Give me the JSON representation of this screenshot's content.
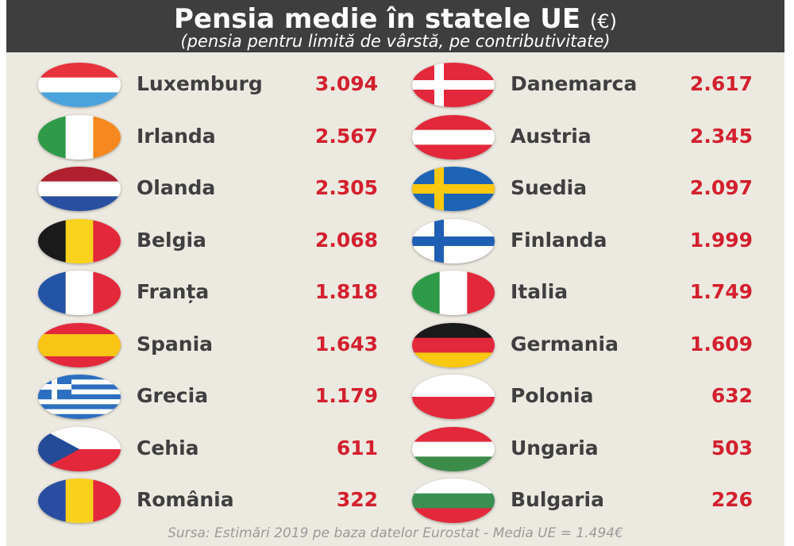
{
  "title": "Pensia medie în statele UE",
  "title_unit": "(€)",
  "subtitle": "(pensia pentru limită de vârstă, pe contributivitate)",
  "source": "Sursa: Estimări 2019 pe baza datelor Eurostat - Media UE = 1.494€",
  "colors": {
    "header": "#3e3e3e",
    "background": "#ece9e0",
    "value": "#d3202e",
    "name": "#3f3f3f"
  },
  "left_column": [
    {
      "country": "Luxemburg",
      "value": "3.094",
      "flag": "luxembourg-flag-icon"
    },
    {
      "country": "Irlanda",
      "value": "2.567",
      "flag": "ireland-flag-icon"
    },
    {
      "country": "Olanda",
      "value": "2.305",
      "flag": "netherlands-flag-icon"
    },
    {
      "country": "Belgia",
      "value": "2.068",
      "flag": "belgium-flag-icon"
    },
    {
      "country": "Franța",
      "value": "1.818",
      "flag": "france-flag-icon"
    },
    {
      "country": "Spania",
      "value": "1.643",
      "flag": "spain-flag-icon"
    },
    {
      "country": "Grecia",
      "value": "1.179",
      "flag": "greece-flag-icon"
    },
    {
      "country": "Cehia",
      "value": "611",
      "flag": "czechia-flag-icon"
    },
    {
      "country": "România",
      "value": "322",
      "flag": "romania-flag-icon"
    }
  ],
  "right_column": [
    {
      "country": "Danemarca",
      "value": "2.617",
      "flag": "denmark-flag-icon"
    },
    {
      "country": "Austria",
      "value": "2.345",
      "flag": "austria-flag-icon"
    },
    {
      "country": "Suedia",
      "value": "2.097",
      "flag": "sweden-flag-icon"
    },
    {
      "country": "Finlanda",
      "value": "1.999",
      "flag": "finland-flag-icon"
    },
    {
      "country": "Italia",
      "value": "1.749",
      "flag": "italy-flag-icon"
    },
    {
      "country": "Germania",
      "value": "1.609",
      "flag": "germany-flag-icon"
    },
    {
      "country": "Polonia",
      "value": "632",
      "flag": "poland-flag-icon"
    },
    {
      "country": "Ungaria",
      "value": "503",
      "flag": "hungary-flag-icon"
    },
    {
      "country": "Bulgaria",
      "value": "226",
      "flag": "bulgaria-flag-icon"
    }
  ]
}
